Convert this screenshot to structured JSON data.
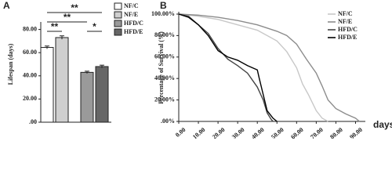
{
  "chart_data": [
    {
      "type": "bar",
      "label": "A",
      "y_label": "Lifespan (days)",
      "categories": [
        "NF/C",
        "NF/E",
        "HFD/C",
        "HFD/E"
      ],
      "values": [
        64.5,
        73,
        43,
        48
      ],
      "errors": [
        1.2,
        1.5,
        1,
        1.2
      ],
      "colors": [
        "#ffffff",
        "#cfcfcf",
        "#9a9a9a",
        "#666666"
      ],
      "ylim": [
        0,
        100
      ],
      "yticks": [
        {
          "value": 0,
          "label": ".00"
        },
        {
          "value": 20,
          "label": "20.00"
        },
        {
          "value": 40,
          "label": "40.00"
        },
        {
          "value": 60,
          "label": "60.00"
        },
        {
          "value": 80,
          "label": "80.00"
        }
      ],
      "annotations": [
        "**",
        "**",
        "**",
        "*"
      ]
    },
    {
      "type": "line",
      "label": "B",
      "y_label": "Percentage of Survival (%)",
      "x_label": "days",
      "xlim": [
        0,
        95
      ],
      "ylim": [
        0,
        100
      ],
      "xticks": [
        {
          "value": 0,
          "label": "0.00"
        },
        {
          "value": 10,
          "label": "10.00"
        },
        {
          "value": 20,
          "label": "20.00"
        },
        {
          "value": 30,
          "label": "30.00"
        },
        {
          "value": 40,
          "label": "40.00"
        },
        {
          "value": 50,
          "label": "50.00"
        },
        {
          "value": 60,
          "label": "60.00"
        },
        {
          "value": 70,
          "label": "70.00"
        },
        {
          "value": 80,
          "label": "80.00"
        },
        {
          "value": 90,
          "label": "90.00"
        }
      ],
      "yticks": [
        {
          "value": 0,
          "label": ".00%"
        },
        {
          "value": 20,
          "label": "20.00%"
        },
        {
          "value": 40,
          "label": "40.00%"
        },
        {
          "value": 60,
          "label": "60.00%"
        },
        {
          "value": 80,
          "label": "80.00%"
        },
        {
          "value": 100,
          "label": "100.00%"
        }
      ],
      "series": [
        {
          "name": "NF/C",
          "color": "#c8c8c8",
          "x": [
            0,
            10,
            20,
            30,
            40,
            50,
            55,
            60,
            63,
            66,
            70,
            73,
            76
          ],
          "values": [
            100,
            98,
            95,
            90,
            85,
            75,
            65,
            50,
            35,
            25,
            10,
            3,
            0
          ]
        },
        {
          "name": "NF/E",
          "color": "#8c8c8c",
          "x": [
            0,
            10,
            20,
            30,
            40,
            50,
            55,
            60,
            65,
            70,
            73,
            76,
            80,
            85,
            90,
            92
          ],
          "values": [
            100,
            99,
            97,
            94,
            90,
            84,
            80,
            72,
            58,
            45,
            33,
            20,
            12,
            7,
            3,
            0
          ]
        },
        {
          "name": "HFD/C",
          "color": "#444444",
          "x": [
            0,
            5,
            10,
            15,
            20,
            25,
            30,
            35,
            40,
            43,
            45,
            47,
            48
          ],
          "values": [
            100,
            98,
            90,
            82,
            68,
            58,
            52,
            45,
            32,
            20,
            8,
            2,
            0
          ]
        },
        {
          "name": "HFD/E",
          "color": "#000000",
          "x": [
            0,
            5,
            10,
            15,
            20,
            25,
            30,
            35,
            40,
            41,
            43,
            45,
            48,
            50
          ],
          "values": [
            100,
            97,
            90,
            80,
            66,
            60,
            57,
            52,
            48,
            40,
            25,
            10,
            3,
            0
          ]
        }
      ]
    }
  ]
}
